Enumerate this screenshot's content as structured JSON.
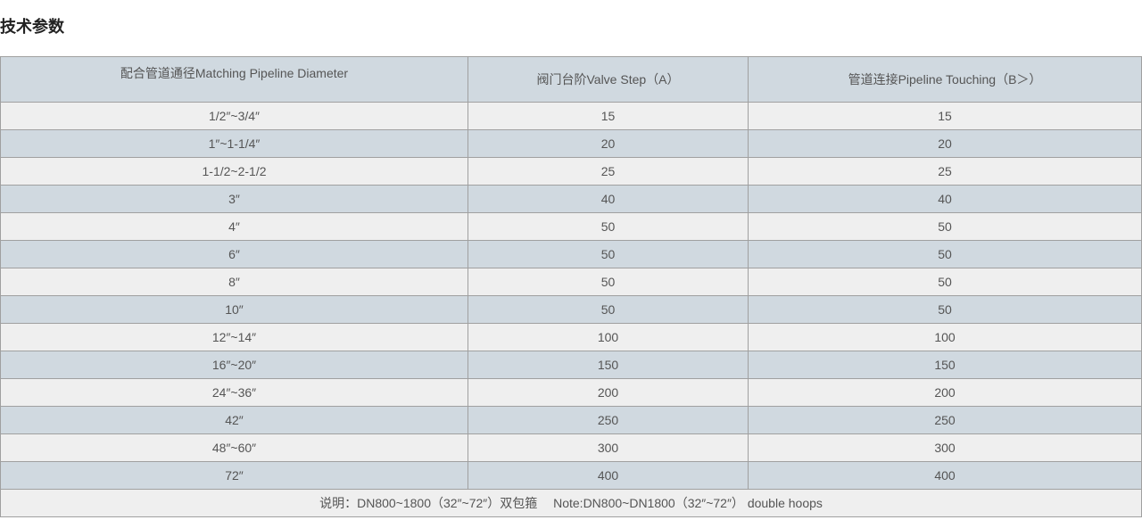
{
  "title": "技术参数",
  "headers": [
    "配合管道通径Matching Pipeline Diameter",
    "阀门台阶Valve Step（A）",
    "管道连接Pipeline Touching（B＞）"
  ],
  "rows": [
    [
      "1/2″~3/4″",
      "15",
      "15"
    ],
    [
      "1″~1-1/4″",
      "20",
      "20"
    ],
    [
      "1-1/2~2-1/2",
      "25",
      "25"
    ],
    [
      "3″",
      "40",
      "40"
    ],
    [
      "4″",
      "50",
      "50"
    ],
    [
      "6″",
      "50",
      "50"
    ],
    [
      "8″",
      "50",
      "50"
    ],
    [
      "10″",
      "50",
      "50"
    ],
    [
      "12″~14″",
      "100",
      "100"
    ],
    [
      "16″~20″",
      "150",
      "150"
    ],
    [
      "24″~36″",
      "200",
      "200"
    ],
    [
      "42″",
      "250",
      "250"
    ],
    [
      "48″~60″",
      "300",
      "300"
    ],
    [
      "72″",
      "400",
      "400"
    ]
  ],
  "note": "说明：DN800~1800（32″~72″）双包箍　 Note:DN800~DN1800（32″~72″） double hoops"
}
